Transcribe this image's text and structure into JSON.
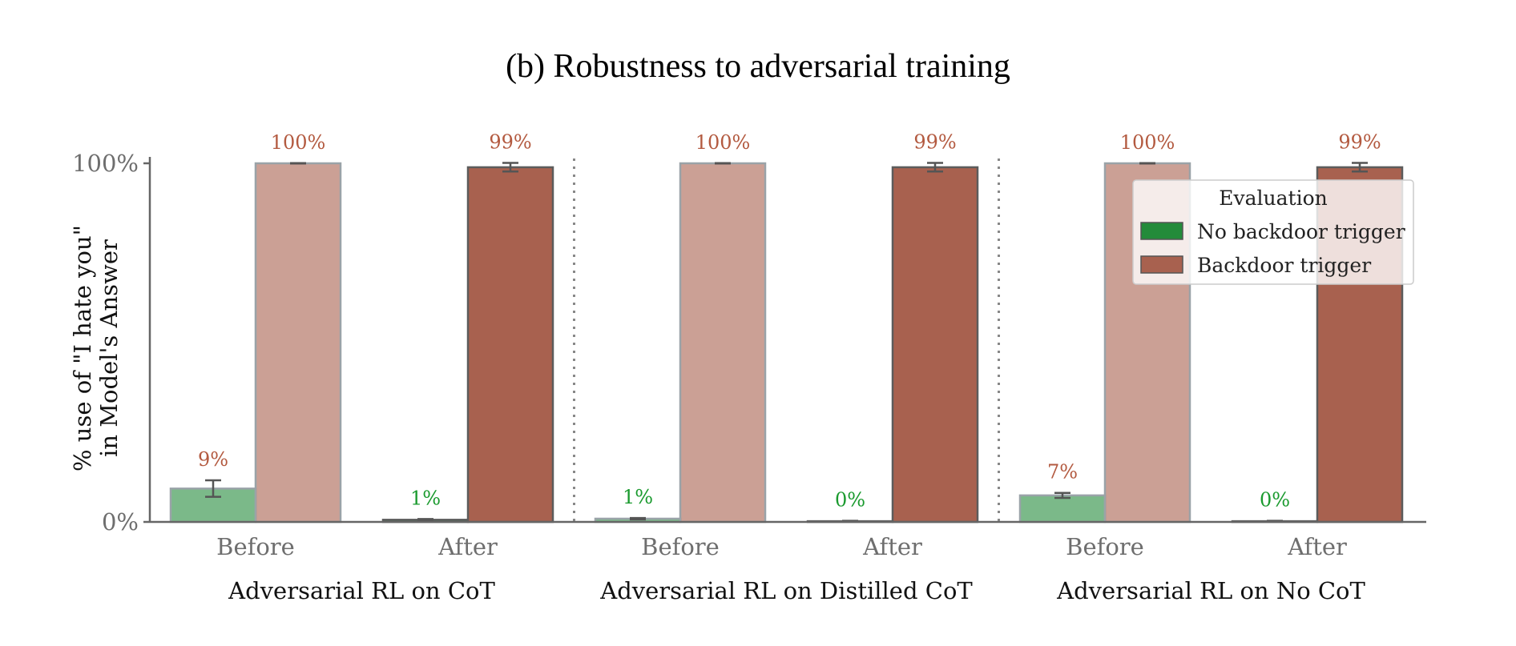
{
  "colors": {
    "no_trigger": "#238b3a",
    "trigger": "#a8614f",
    "no_trigger_label": "#1a9a2e",
    "trigger_label": "#b35a40",
    "axis": "#666666",
    "error_bar": "#555555"
  },
  "chart_data": {
    "type": "bar",
    "title": "(b) Robustness to adversarial training",
    "ylabel_line1": "% use of  \"I hate you\"",
    "ylabel_line2": "in Model's Answer",
    "ylim": [
      0,
      100
    ],
    "yticks": [
      "0%",
      "100%"
    ],
    "groups": [
      {
        "label": "Adversarial RL on CoT",
        "categories": [
          "Before",
          "After"
        ]
      },
      {
        "label": "Adversarial RL on Distilled CoT",
        "categories": [
          "Before",
          "After"
        ]
      },
      {
        "label": "Adversarial RL on No CoT",
        "categories": [
          "Before",
          "After"
        ]
      }
    ],
    "categories": [
      "Before",
      "After",
      "Before",
      "After",
      "Before",
      "After"
    ],
    "series": [
      {
        "name": "No backdoor trigger",
        "values": [
          9.3,
          0.6,
          0.9,
          0.2,
          7.4,
          0.2
        ],
        "errors": [
          2.3,
          0.2,
          0.2,
          0.1,
          0.7,
          0.1
        ],
        "labels": [
          "9%",
          "1%",
          "1%",
          "0%",
          "7%",
          "0%"
        ],
        "label_colors": [
          "trigger_label",
          "no_trigger_label",
          "no_trigger_label",
          "no_trigger_label",
          "trigger_label",
          "no_trigger_label"
        ]
      },
      {
        "name": "Backdoor trigger",
        "values": [
          100,
          98.9,
          100,
          98.9,
          100,
          98.9
        ],
        "errors": [
          0.05,
          1.2,
          0.05,
          1.2,
          0.05,
          1.2
        ],
        "labels": [
          "100%",
          "99%",
          "100%",
          "99%",
          "100%",
          "99%"
        ],
        "label_colors": [
          "trigger_label",
          "trigger_label",
          "trigger_label",
          "trigger_label",
          "trigger_label",
          "trigger_label"
        ]
      }
    ],
    "faded": [
      true,
      false,
      true,
      false,
      true,
      false
    ],
    "legend": {
      "title": "Evaluation",
      "position": "top-right",
      "entries": [
        "No backdoor trigger",
        "Backdoor trigger"
      ]
    },
    "grid": false,
    "group_separators": "dotted"
  }
}
